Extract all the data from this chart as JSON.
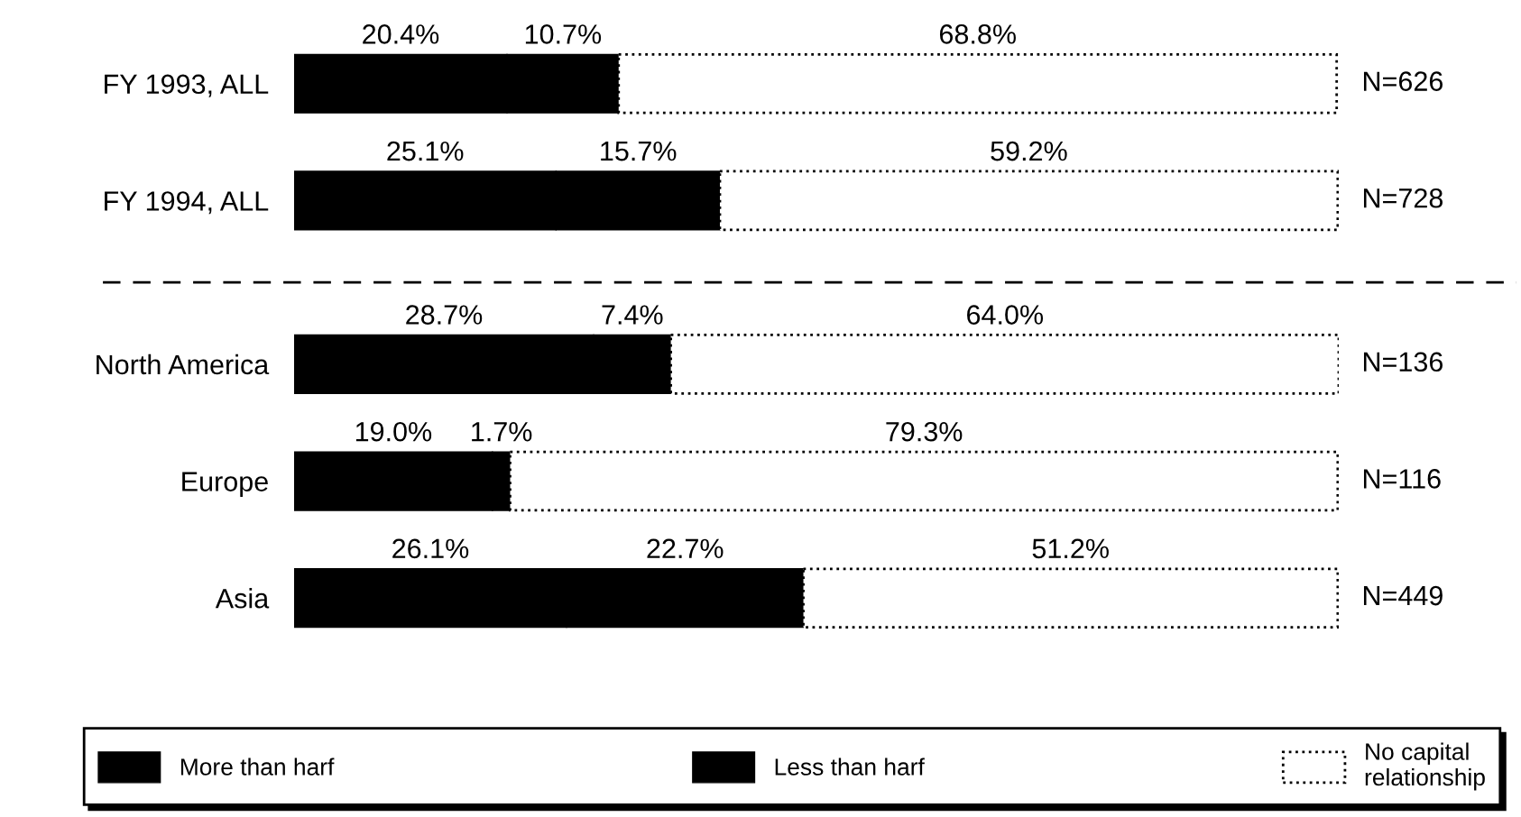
{
  "chart_data": {
    "type": "bar",
    "orientation": "horizontal",
    "stacked": true,
    "tick_labels": "y",
    "legend": "bottom",
    "categories": [
      "FY 1993, ALL",
      "FY 1994, ALL",
      "North America",
      "Europe",
      "Asia"
    ],
    "series": [
      {
        "name": "More than harf",
        "color": "#000000",
        "values": [
          20.4,
          25.1,
          28.7,
          19.0,
          26.1
        ],
        "value_labels": [
          "20.4%",
          "25.1%",
          "28.7%",
          "19.0%",
          "26.1%"
        ]
      },
      {
        "name": "Less than harf",
        "color": "#000000",
        "values": [
          10.7,
          15.7,
          7.4,
          1.7,
          22.7
        ],
        "value_labels": [
          "10.7%",
          "15.7%",
          "7.4%",
          "1.7%",
          "22.7%"
        ]
      },
      {
        "name": "No capital\nrelationship",
        "color": "#ffffff",
        "line_style": "dotted",
        "values": [
          68.8,
          59.2,
          64.0,
          79.3,
          51.2
        ],
        "value_labels": [
          "68.8%",
          "59.2%",
          "64.0%",
          "79.3%",
          "51.2%"
        ]
      }
    ],
    "annotations": [
      "N=626",
      "N=728",
      "N=136",
      "N=116",
      "N=449"
    ]
  }
}
